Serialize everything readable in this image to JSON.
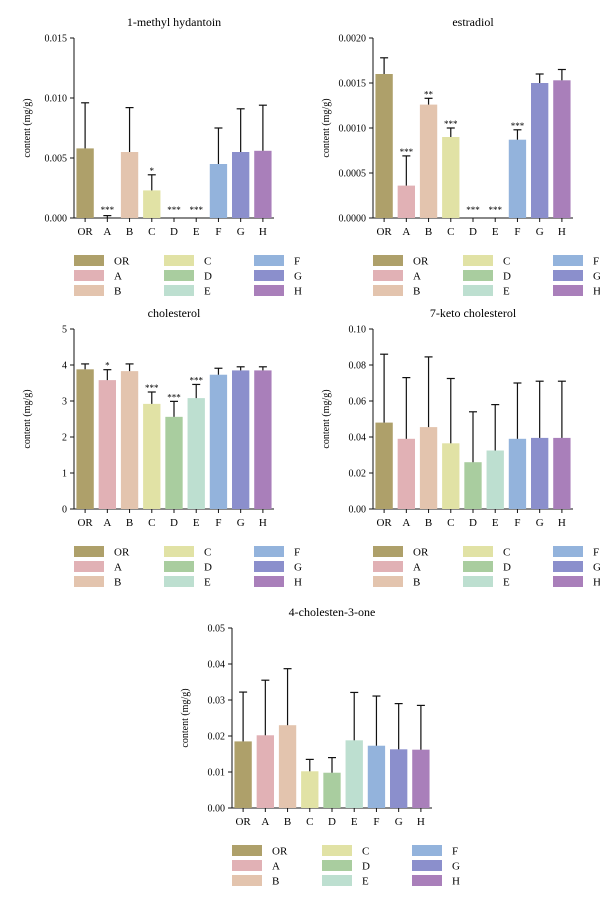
{
  "colors": {
    "OR": "#aea06a",
    "A": "#e1b1b5",
    "B": "#e3c4ae",
    "C": "#e1e2a5",
    "D": "#a9cd9f",
    "E": "#bddfd0",
    "F": "#93b3dc",
    "G": "#8b8fcc",
    "H": "#a97fba"
  },
  "legend": {
    "columns": [
      [
        "OR",
        "A",
        "B"
      ],
      [
        "C",
        "D",
        "E"
      ],
      [
        "F",
        "G",
        "H"
      ]
    ]
  },
  "chart_data": [
    {
      "type": "bar",
      "title": "1-methyl hydantoin",
      "ylabel": "content (mg/g)",
      "categories": [
        "OR",
        "A",
        "B",
        "C",
        "D",
        "E",
        "F",
        "G",
        "H"
      ],
      "values": [
        0.0058,
        0.0,
        0.0055,
        0.0023,
        0.0,
        0.0,
        0.0045,
        0.0055,
        0.0056
      ],
      "errors": [
        0.0038,
        0.0002,
        0.0037,
        0.0013,
        0.0,
        0.0,
        0.003,
        0.0036,
        0.0038
      ],
      "significance": [
        "",
        "***",
        "",
        "*",
        "***",
        "***",
        "",
        "",
        ""
      ],
      "ylim": [
        0,
        0.015
      ],
      "yticks": [
        "0.000",
        "0.005",
        "0.010",
        "0.015"
      ]
    },
    {
      "type": "bar",
      "title": "estradiol",
      "ylabel": "content (mg/g)",
      "categories": [
        "OR",
        "A",
        "B",
        "C",
        "D",
        "E",
        "F",
        "G",
        "H"
      ],
      "values": [
        0.0016,
        0.00036,
        0.00126,
        0.0009,
        0.0,
        0.0,
        0.00087,
        0.0015,
        0.00153
      ],
      "errors": [
        0.00018,
        0.00033,
        7e-05,
        0.0001,
        0.0,
        0.0,
        0.00011,
        0.0001,
        0.00012
      ],
      "significance": [
        "",
        "***",
        "**",
        "***",
        "***",
        "***",
        "***",
        "",
        ""
      ],
      "ylim": [
        0,
        0.002
      ],
      "yticks": [
        "0.0000",
        "0.0005",
        "0.0010",
        "0.0015",
        "0.0020"
      ]
    },
    {
      "type": "bar",
      "title": "cholesterol",
      "ylabel": "content (mg/g)",
      "categories": [
        "OR",
        "A",
        "B",
        "C",
        "D",
        "E",
        "F",
        "G",
        "H"
      ],
      "values": [
        3.88,
        3.58,
        3.83,
        2.92,
        2.56,
        3.08,
        3.73,
        3.85,
        3.85
      ],
      "errors": [
        0.15,
        0.29,
        0.2,
        0.33,
        0.43,
        0.38,
        0.18,
        0.1,
        0.1
      ],
      "significance": [
        "",
        "*",
        "",
        "***",
        "***",
        "***",
        "",
        "",
        ""
      ],
      "ylim": [
        0,
        5
      ],
      "yticks": [
        "0",
        "1",
        "2",
        "3",
        "4",
        "5"
      ]
    },
    {
      "type": "bar",
      "title": "7-keto cholesterol",
      "ylabel": "content (mg/g)",
      "categories": [
        "OR",
        "A",
        "B",
        "C",
        "D",
        "E",
        "F",
        "G",
        "H"
      ],
      "values": [
        0.048,
        0.039,
        0.0455,
        0.0365,
        0.026,
        0.0325,
        0.039,
        0.0395,
        0.0395
      ],
      "errors": [
        0.038,
        0.034,
        0.039,
        0.036,
        0.028,
        0.0255,
        0.031,
        0.0315,
        0.0315
      ],
      "significance": [
        "",
        "",
        "",
        "",
        "",
        "",
        "",
        "",
        ""
      ],
      "ylim": [
        0,
        0.1
      ],
      "yticks": [
        "0.00",
        "0.02",
        "0.04",
        "0.06",
        "0.08",
        "0.10"
      ]
    },
    {
      "type": "bar",
      "title": "4-cholesten-3-one",
      "ylabel": "content (mg/g)",
      "categories": [
        "OR",
        "A",
        "B",
        "C",
        "D",
        "E",
        "F",
        "G",
        "H"
      ],
      "values": [
        0.0185,
        0.0202,
        0.023,
        0.0102,
        0.0098,
        0.0188,
        0.0173,
        0.0163,
        0.0162
      ],
      "errors": [
        0.0137,
        0.0153,
        0.0157,
        0.0033,
        0.0042,
        0.0133,
        0.0138,
        0.0127,
        0.0123
      ],
      "significance": [
        "",
        "",
        "",
        "",
        "",
        "",
        "",
        "",
        ""
      ],
      "ylim": [
        0,
        0.05
      ],
      "yticks": [
        "0.00",
        "0.01",
        "0.02",
        "0.03",
        "0.04",
        "0.05"
      ]
    }
  ]
}
